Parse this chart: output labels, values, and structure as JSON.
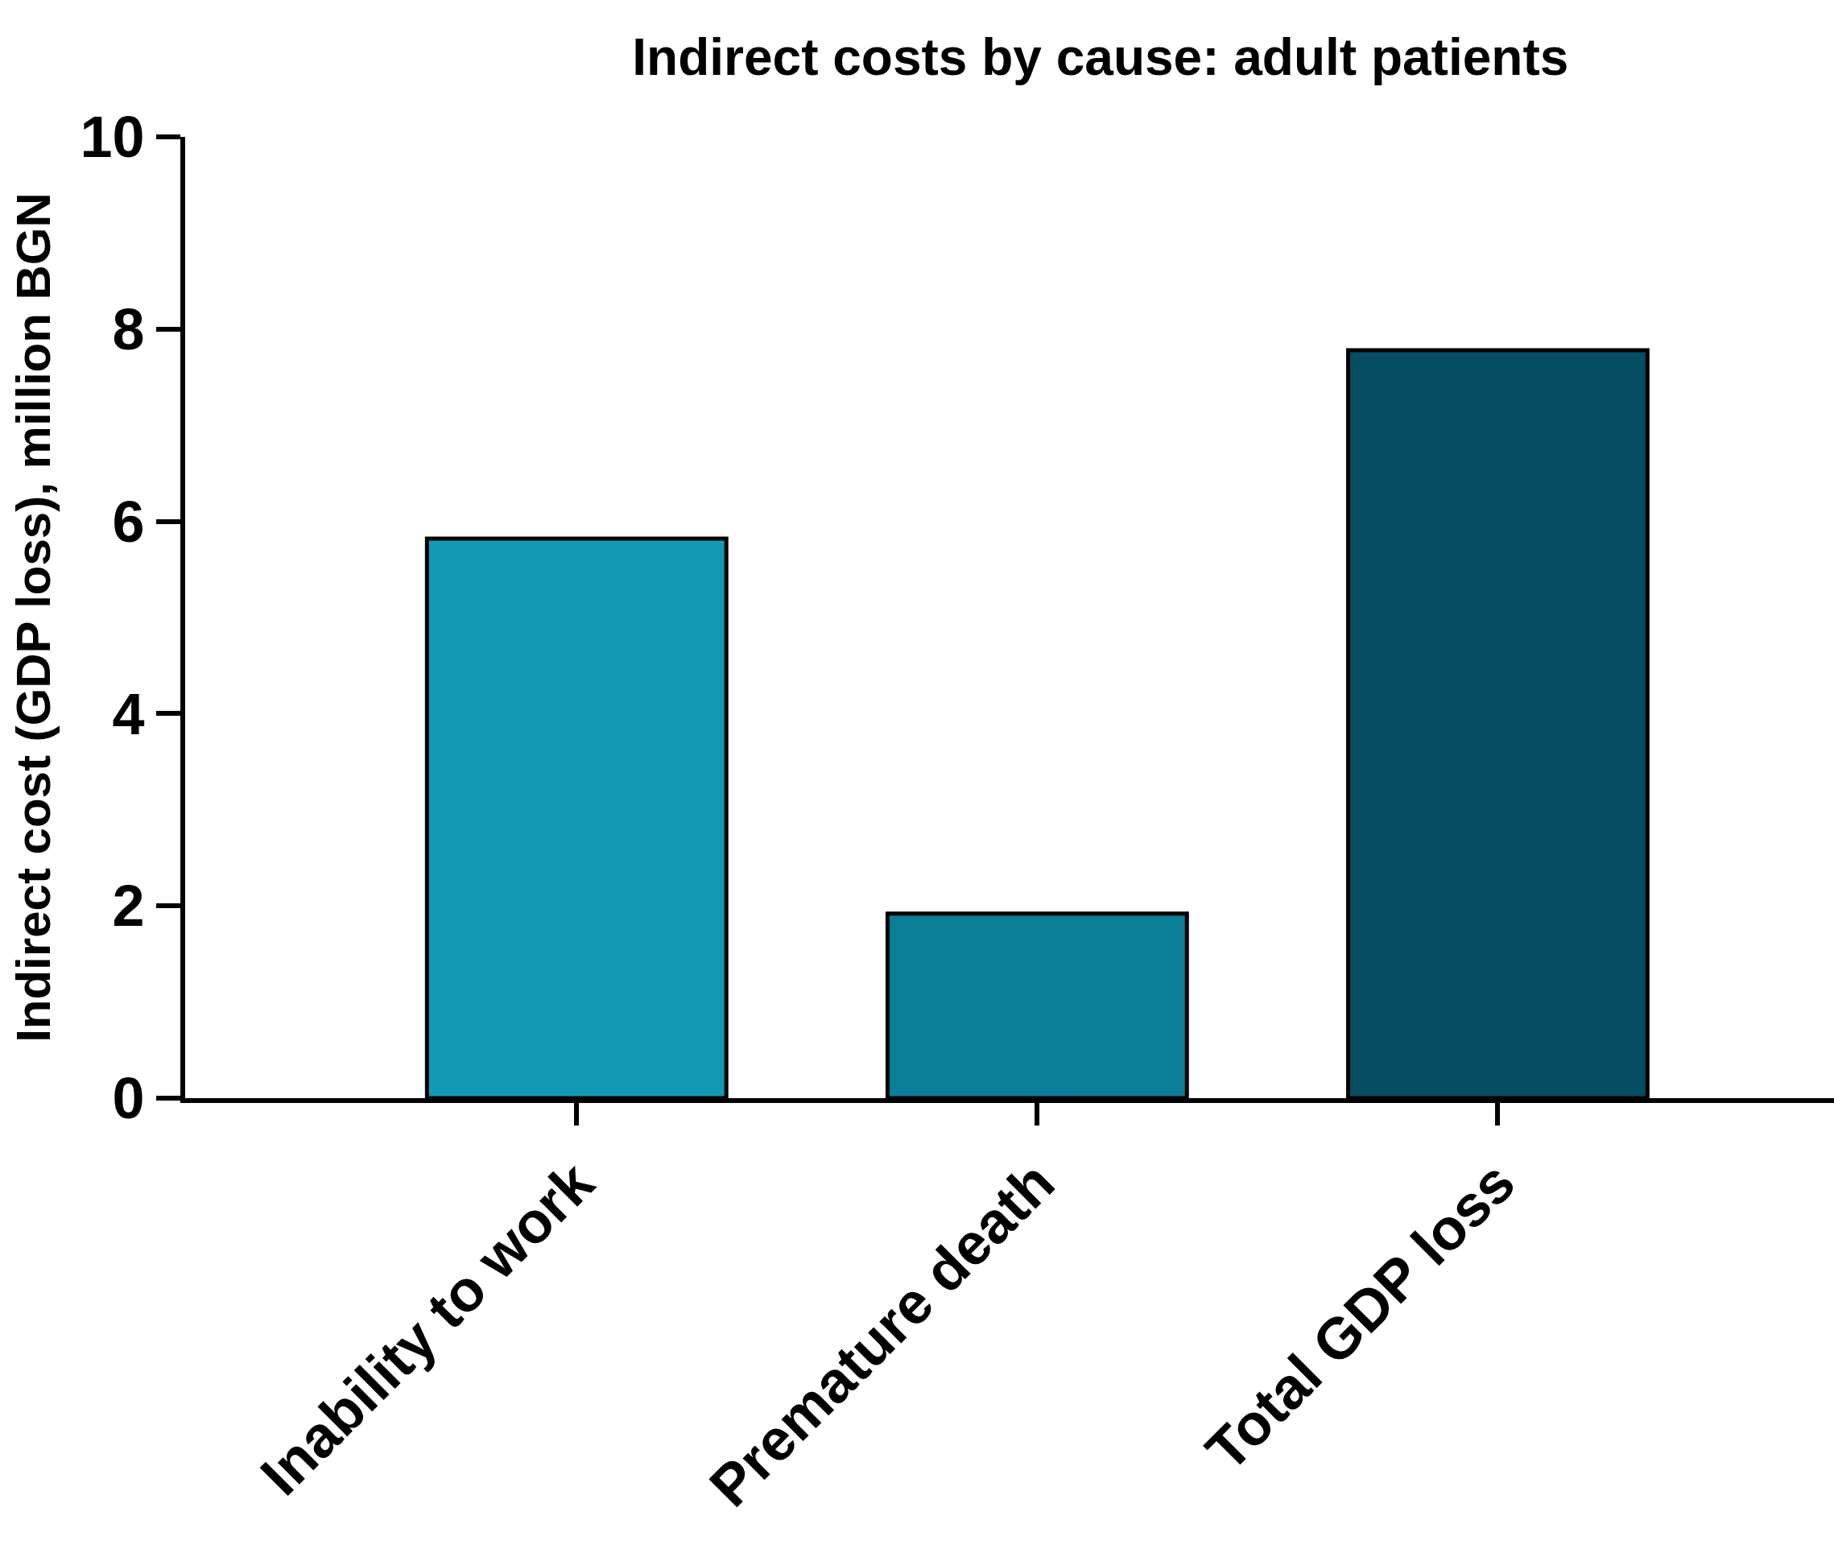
{
  "chart_data": {
    "type": "bar",
    "title": "Indirect costs by cause: adult patients",
    "ylabel": "Indirect cost (GDP loss), million BGN",
    "categories": [
      "Inability to work",
      "Premature death",
      "Total GDP loss"
    ],
    "values": [
      5.82,
      1.92,
      7.78
    ],
    "colors": [
      "#129ab4",
      "#0a7e96",
      "#054d60"
    ],
    "ylim": [
      0,
      10
    ],
    "yticks": [
      0,
      2,
      4,
      6,
      8,
      10
    ]
  }
}
